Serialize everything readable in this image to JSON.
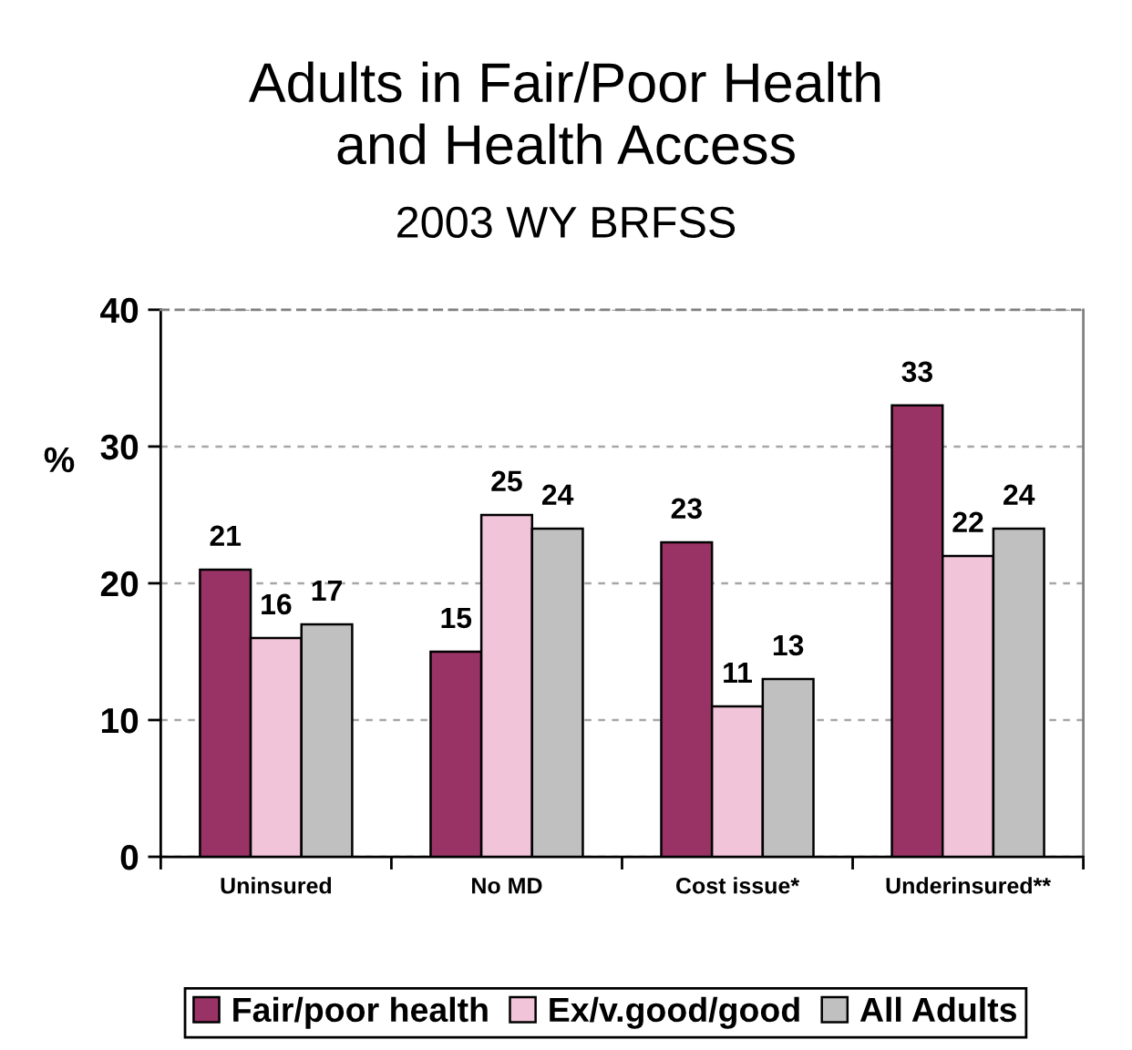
{
  "chart_data": {
    "type": "bar",
    "title": "Adults in Fair/Poor Health\nand Health Access",
    "subtitle": "2003 WY BRFSS",
    "ylabel": "%",
    "categories": [
      "Uninsured",
      "No MD",
      "Cost issue*",
      "Underinsured**"
    ],
    "series": [
      {
        "name": "Fair/poor health",
        "color": "#993366",
        "values": [
          21,
          15,
          23,
          33
        ]
      },
      {
        "name": "Ex/v.good/good",
        "color": "#f2c4da",
        "values": [
          16,
          25,
          11,
          22
        ]
      },
      {
        "name": "All Adults",
        "color": "#c0c0c0",
        "values": [
          17,
          24,
          13,
          24
        ]
      }
    ],
    "ylim": [
      0,
      40
    ],
    "yticks": [
      0,
      10,
      20,
      30,
      40
    ],
    "grid": "y",
    "legend": "bottom",
    "data_labels": true
  }
}
